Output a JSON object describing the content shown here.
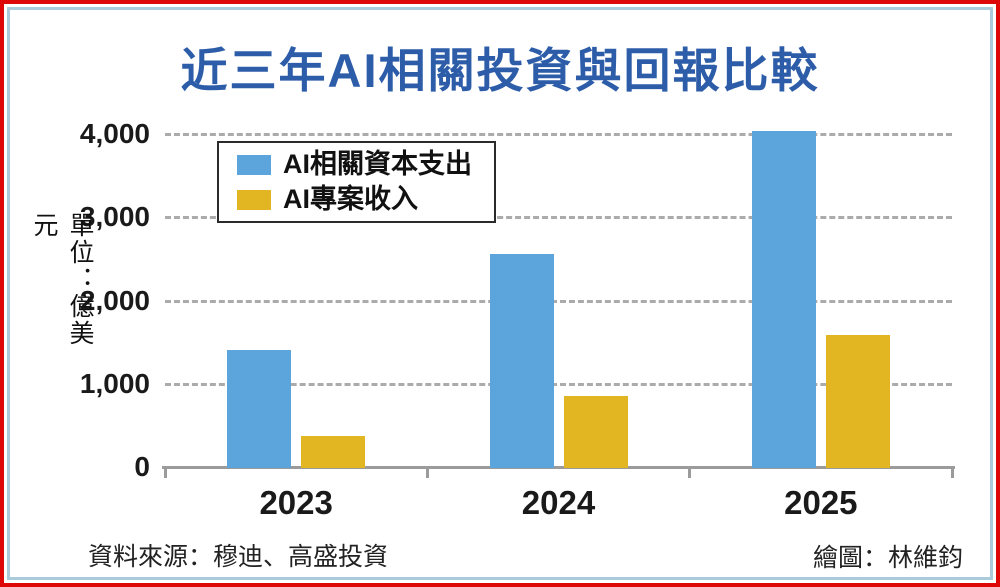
{
  "page": {
    "title": "近三年AI相關投資與回報比較",
    "unit_label": "單位：億美元",
    "source": "資料來源：穆迪、高盛投資",
    "credit": "繪圖：林維鈞"
  },
  "legend": {
    "items": [
      {
        "label": "AI相關資本支出",
        "color": "#5ca4dc"
      },
      {
        "label": "AI專案收入",
        "color": "#e2b522"
      }
    ]
  },
  "chart_data": {
    "type": "bar",
    "title": "近三年AI相關投資與回報比較",
    "categories": [
      "2023",
      "2024",
      "2025"
    ],
    "series": [
      {
        "name": "AI相關資本支出",
        "color": "#5ca4dc",
        "values": [
          1420,
          2570,
          4050
        ]
      },
      {
        "name": "AI專案收入",
        "color": "#e2b522",
        "values": [
          380,
          870,
          1600
        ]
      }
    ],
    "xlabel": "",
    "ylabel": "單位：億美元",
    "ylim": [
      0,
      4200
    ],
    "yticks": [
      0,
      1000,
      2000,
      3000,
      4000
    ],
    "ytick_labels": [
      "0",
      "1,000",
      "2,000",
      "3,000",
      "4,000"
    ],
    "grid": "horizontal-dashed",
    "legend_position": "upper-left-inside"
  },
  "colors": {
    "title_text": "#2d5da9",
    "outer_border": "#dd0707",
    "inner_border": "#abcbdc",
    "gridline": "#ababab",
    "axis": "#9b9b9b",
    "bar_capex": "#5ca4dc",
    "bar_revenue": "#e2b522",
    "text": "#1a1a1a"
  }
}
